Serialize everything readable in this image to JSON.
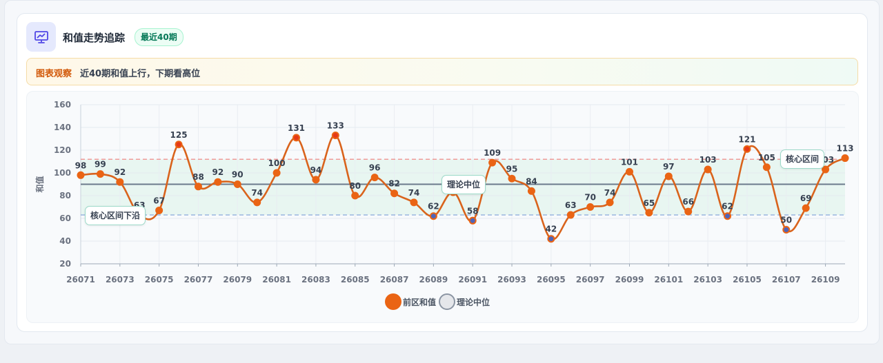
{
  "header": {
    "title": "和值走势追踪",
    "badge": "最近40期"
  },
  "observation": {
    "label": "图表观察",
    "text": "近40期和值上行，下期看高位"
  },
  "annotations": {
    "lower_band": "核心区间下沿",
    "median": "理论中位",
    "upper_band": "核心区间"
  },
  "legend": [
    {
      "label": "前区和值",
      "color": "#ea6414",
      "icon": "filled-circle"
    },
    {
      "label": "理论中位",
      "color": "#e5e7eb",
      "icon": "outlined-circle"
    }
  ],
  "colors": {
    "line": "#ea6414",
    "line_stroke": "#d9631c",
    "low_point": "#4f65b8",
    "band_fill": "#e8f6f1",
    "upper_line": "#ef7b7b",
    "lower_line": "#7c9fd8",
    "median_line": "#6b7a8c"
  },
  "chart_data": {
    "type": "line",
    "title": "",
    "xlabel": "",
    "ylabel": "和值",
    "ylim": [
      20,
      160
    ],
    "yticks": [
      20,
      40,
      60,
      80,
      100,
      120,
      140,
      160
    ],
    "grid": true,
    "legend_position": "bottom-center",
    "x": [
      "26071",
      "26072",
      "26073",
      "26074",
      "26075",
      "26076",
      "26077",
      "26078",
      "26079",
      "26080",
      "26081",
      "26082",
      "26083",
      "26084",
      "26085",
      "26086",
      "26087",
      "26088",
      "26089",
      "26090",
      "26091",
      "26092",
      "26093",
      "26094",
      "26095",
      "26096",
      "26097",
      "26098",
      "26099",
      "26100",
      "26101",
      "26102",
      "26103",
      "26104",
      "26105",
      "26106",
      "26107",
      "26108",
      "26109",
      "26110"
    ],
    "xtick_labels": [
      "26071",
      "26073",
      "26075",
      "26077",
      "26079",
      "26081",
      "26083",
      "26085",
      "26087",
      "26089",
      "26091",
      "26093",
      "26095",
      "26097",
      "26099",
      "26101",
      "26103",
      "26105",
      "26107",
      "26109"
    ],
    "series": [
      {
        "name": "前区和值",
        "values": [
          98,
          99,
          92,
          63,
          67,
          125,
          88,
          92,
          90,
          74,
          100,
          131,
          94,
          133,
          80,
          96,
          82,
          74,
          62,
          83,
          58,
          109,
          95,
          84,
          42,
          63,
          70,
          74,
          101,
          65,
          97,
          66,
          103,
          62,
          121,
          105,
          50,
          69,
          103,
          113
        ]
      }
    ],
    "reference_lines": {
      "median": 90,
      "band_upper": 112,
      "band_lower": 63
    }
  }
}
